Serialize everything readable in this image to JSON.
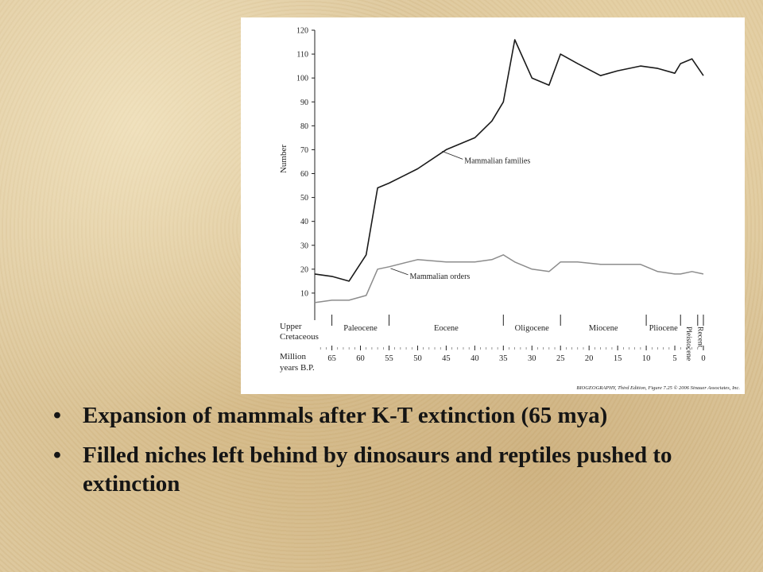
{
  "chart_data": {
    "type": "line",
    "ylabel": "Number",
    "ylim": [
      0,
      120
    ],
    "yticks": [
      10,
      20,
      30,
      40,
      50,
      60,
      70,
      80,
      90,
      100,
      110,
      120
    ],
    "x_axis": {
      "label_line1": "Million",
      "label_line2": "years B.P.",
      "ticks": [
        65,
        60,
        55,
        50,
        45,
        40,
        35,
        30,
        25,
        20,
        15,
        10,
        5,
        0
      ],
      "range": [
        68,
        0
      ],
      "periods_label": "Upper Cretaceous",
      "periods_label_line1": "Upper",
      "periods_label_line2": "Cretaceous",
      "epochs": [
        {
          "name": "Paleocene",
          "start": 65,
          "end": 55
        },
        {
          "name": "Eocene",
          "start": 55,
          "end": 35
        },
        {
          "name": "Oligocene",
          "start": 35,
          "end": 25
        },
        {
          "name": "Miocene",
          "start": 25,
          "end": 10
        },
        {
          "name": "Pliocene",
          "start": 10,
          "end": 4
        },
        {
          "name": "Pleistocene",
          "start": 4,
          "end": 1,
          "vertical": true
        },
        {
          "name": "Recent",
          "start": 1,
          "end": 0,
          "vertical": true
        }
      ]
    },
    "series": [
      {
        "name": "Mammalian families",
        "color": "#1a1a1a",
        "x": [
          68,
          65,
          62,
          59,
          57,
          55,
          50,
          45,
          40,
          37,
          35,
          33,
          30,
          27,
          25,
          22,
          18,
          15,
          11,
          8,
          5,
          4,
          2,
          0
        ],
        "y": [
          18,
          17,
          15,
          26,
          54,
          56,
          62,
          70,
          75,
          82,
          90,
          116,
          100,
          97,
          110,
          106,
          101,
          103,
          105,
          104,
          102,
          106,
          108,
          101
        ]
      },
      {
        "name": "Mammalian orders",
        "color": "#8c8c8c",
        "x": [
          68,
          65,
          62,
          59,
          57,
          55,
          50,
          45,
          40,
          37,
          35,
          33,
          30,
          27,
          25,
          22,
          18,
          15,
          11,
          8,
          5,
          4,
          2,
          0
        ],
        "y": [
          6,
          7,
          7,
          9,
          20,
          21,
          24,
          23,
          23,
          24,
          26,
          23,
          20,
          19,
          23,
          23,
          22,
          22,
          22,
          19,
          18,
          18,
          19,
          18
        ]
      }
    ],
    "annotations": [
      {
        "series": "Mammalian families",
        "text": "Mammalian families",
        "at_x": 46,
        "at_y": 70
      },
      {
        "series": "Mammalian orders",
        "text": "Mammalian orders",
        "at_x": 55,
        "at_y": 21
      }
    ],
    "credit": "BIOGEOGRAPHY, Third Edition, Figure 7.25 © 2006 Sinauer Associates, Inc.",
    "grid": false
  },
  "slide": {
    "bullets": [
      "Expansion of mammals after K-T extinction (65 mya)",
      "Filled niches left behind by dinosaurs and reptiles pushed to extinction"
    ]
  },
  "colors": {
    "background": "#dcc69a",
    "figure_bg": "#ffffff",
    "text": "#151515"
  }
}
